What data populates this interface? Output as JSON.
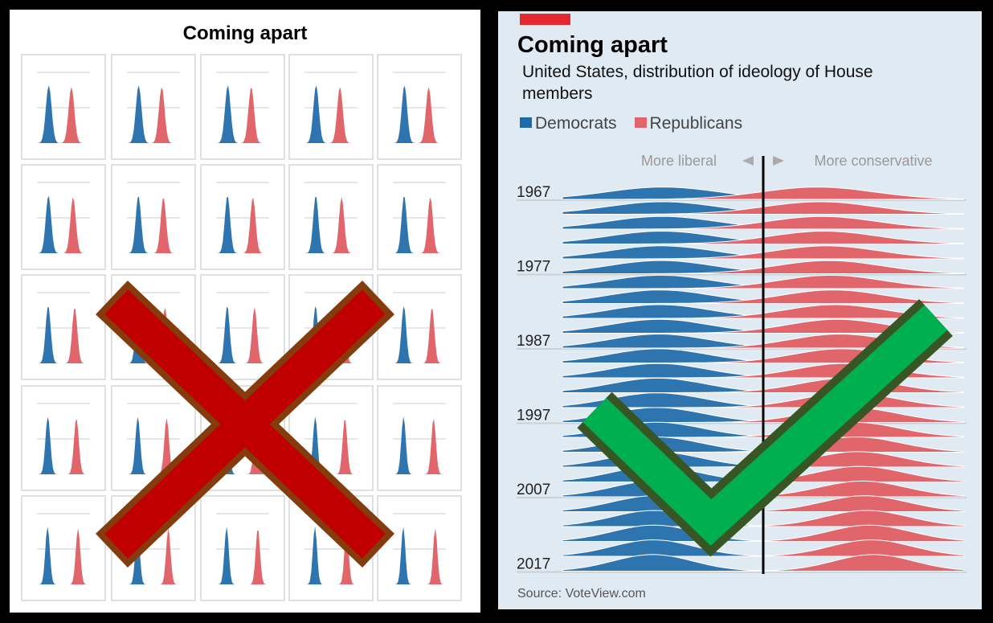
{
  "left_panel": {
    "title": "Coming apart",
    "verdict_icon": "red-x-icon"
  },
  "right_panel": {
    "title": "Coming apart",
    "subtitle": "United States, distribution of ideology of House members",
    "legend": [
      {
        "label": "Democrats",
        "color": "#2e75b0"
      },
      {
        "label": "Republicans",
        "color": "#e0666c"
      }
    ],
    "axis_left_label": "More liberal",
    "axis_right_label": "More conservative",
    "source": "Source: VoteView.com",
    "verdict_icon": "green-check-icon"
  },
  "chart_data": {
    "type": "ridgeline",
    "title": "Coming apart",
    "xlim": [
      -1,
      1
    ],
    "x_meaning": "ideology (liberal to conservative)",
    "year_labels": [
      "1967",
      "1977",
      "1987",
      "1997",
      "2007",
      "2017"
    ],
    "years": [
      1967,
      1969,
      1971,
      1973,
      1975,
      1977,
      1979,
      1981,
      1983,
      1985,
      1987,
      1989,
      1991,
      1993,
      1995,
      1997,
      1999,
      2001,
      2003,
      2005,
      2007,
      2009,
      2011,
      2013,
      2015,
      2017
    ],
    "series": [
      {
        "name": "Democrats",
        "color": "#2e75b0",
        "center_start": -0.5,
        "center_end": -0.55,
        "spread_start": 0.28,
        "spread_end": 0.2
      },
      {
        "name": "Republicans",
        "color": "#e0666c",
        "center_start": 0.27,
        "center_end": 0.55,
        "spread_start": 0.28,
        "spread_end": 0.2
      }
    ]
  }
}
